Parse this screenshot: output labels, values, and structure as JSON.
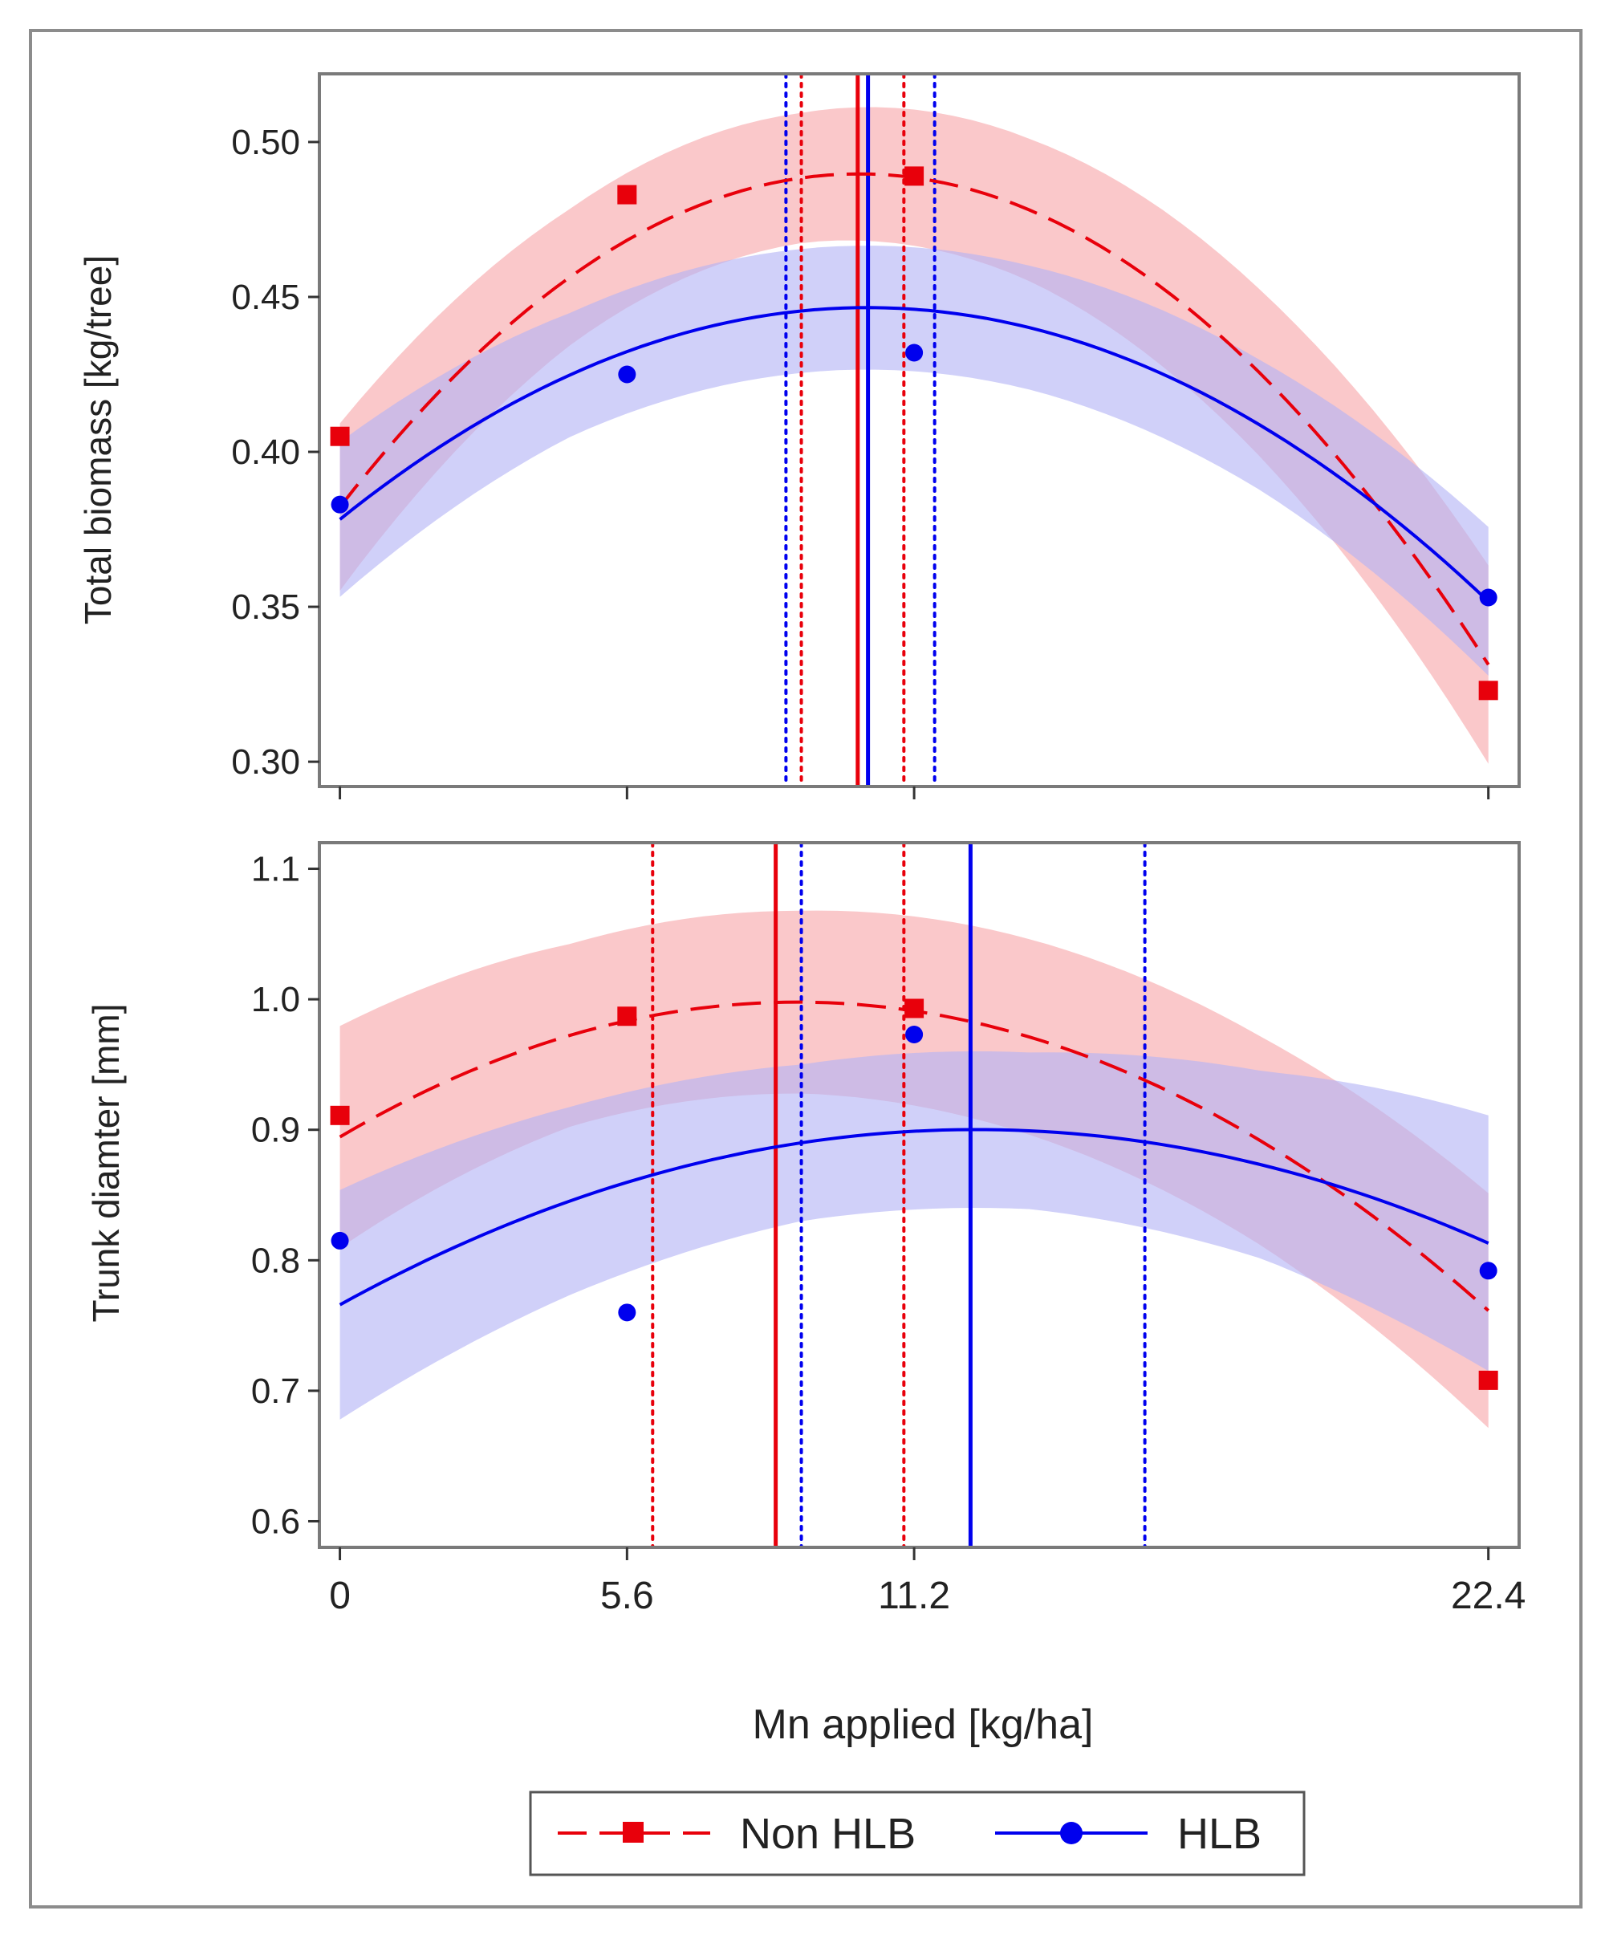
{
  "chart_data": [
    {
      "type": "line",
      "panel": "top",
      "ylabel": "Total biomass [kg/tree]",
      "xlabel": "",
      "x_ticks": [
        0,
        5.6,
        11.2,
        22.4
      ],
      "x_tick_labels": [
        "",
        "",
        "",
        ""
      ],
      "xlim": [
        -0.4,
        23.0
      ],
      "ylim": [
        0.292,
        0.522
      ],
      "y_ticks": [
        0.3,
        0.35,
        0.4,
        0.45,
        0.5
      ],
      "y_tick_labels": [
        "0.30",
        "0.35",
        "0.40",
        "0.45",
        "0.50"
      ],
      "series": [
        {
          "name": "Non HLB",
          "color": "#e8000b",
          "band_color": "#f7a6aa",
          "line_style": "dashed",
          "marker": "square",
          "points": {
            "x": [
              0,
              5.6,
              11.2,
              22.4
            ],
            "y": [
              0.405,
              0.483,
              0.489,
              0.323
            ]
          },
          "fit": {
            "a": 0.3822,
            "b": 0.02125,
            "c": -0.00105
          },
          "band_halfwidth": [
            0.027,
            0.022,
            0.021,
            0.023,
            0.027,
            0.032
          ],
          "band_x": [
            0,
            4.5,
            9,
            13.5,
            18,
            22.4
          ],
          "optimum": 10.1,
          "ci": [
            9.0,
            11.0
          ]
        },
        {
          "name": "HLB",
          "color": "#0000ee",
          "band_color": "#b3b3f5",
          "line_style": "solid",
          "marker": "circle",
          "points": {
            "x": [
              0,
              5.6,
              11.2,
              22.4
            ],
            "y": [
              0.383,
              0.425,
              0.432,
              0.353
            ]
          },
          "fit": {
            "a": 0.3782,
            "b": 0.01329,
            "c": -0.000646
          },
          "band_halfwidth": [
            0.025,
            0.02,
            0.02,
            0.02,
            0.021,
            0.024
          ],
          "band_x": [
            0,
            4.5,
            9,
            13.5,
            18,
            22.4
          ],
          "optimum": 10.3,
          "ci": [
            8.7,
            11.6
          ]
        }
      ]
    },
    {
      "type": "line",
      "panel": "bottom",
      "ylabel": "Trunk diamter [mm]",
      "xlabel": "Mn applied [kg/ha]",
      "x_ticks": [
        0,
        5.6,
        11.2,
        22.4
      ],
      "x_tick_labels": [
        "0",
        "5.6",
        "11.2",
        "22.4"
      ],
      "xlim": [
        -0.4,
        23.0
      ],
      "ylim": [
        0.58,
        1.12
      ],
      "y_ticks": [
        0.6,
        0.7,
        0.8,
        0.9,
        1.0,
        1.1
      ],
      "y_tick_labels": [
        "0.6",
        "0.7",
        "0.8",
        "0.9",
        "1.0",
        "1.1"
      ],
      "series": [
        {
          "name": "Non HLB",
          "color": "#e8000b",
          "band_color": "#f7a6aa",
          "line_style": "dashed",
          "marker": "square",
          "points": {
            "x": [
              0,
              5.6,
              11.2,
              22.4
            ],
            "y": [
              0.911,
              0.987,
              0.993,
              0.708
            ]
          },
          "fit": {
            "a": 0.8945,
            "b": 0.02318,
            "c": -0.0013
          },
          "band_halfwidth": [
            0.085,
            0.07,
            0.07,
            0.075,
            0.08,
            0.09
          ],
          "band_x": [
            0,
            4.5,
            9,
            13.5,
            18,
            22.4
          ],
          "optimum": 8.5,
          "ci": [
            6.1,
            11.0
          ]
        },
        {
          "name": "HLB",
          "color": "#0000ee",
          "band_color": "#b3b3f5",
          "line_style": "solid",
          "marker": "circle",
          "points": {
            "x": [
              0,
              5.6,
              11.2,
              22.4
            ],
            "y": [
              0.815,
              0.76,
              0.973,
              0.792
            ]
          },
          "fit": {
            "a": 0.7659,
            "b": 0.02164,
            "c": -0.000872
          },
          "band_halfwidth": [
            0.088,
            0.072,
            0.06,
            0.06,
            0.072,
            0.098
          ],
          "band_x": [
            0,
            4.5,
            9,
            13.5,
            18,
            22.4
          ],
          "optimum": 12.3,
          "ci": [
            9.0,
            15.7
          ]
        }
      ]
    }
  ],
  "legend": {
    "entries": [
      {
        "label": "Non HLB",
        "color": "#e8000b",
        "marker": "square",
        "line_style": "dashed"
      },
      {
        "label": "HLB",
        "color": "#0000ee",
        "marker": "circle",
        "line_style": "solid"
      }
    ],
    "position": "bottom-center"
  }
}
